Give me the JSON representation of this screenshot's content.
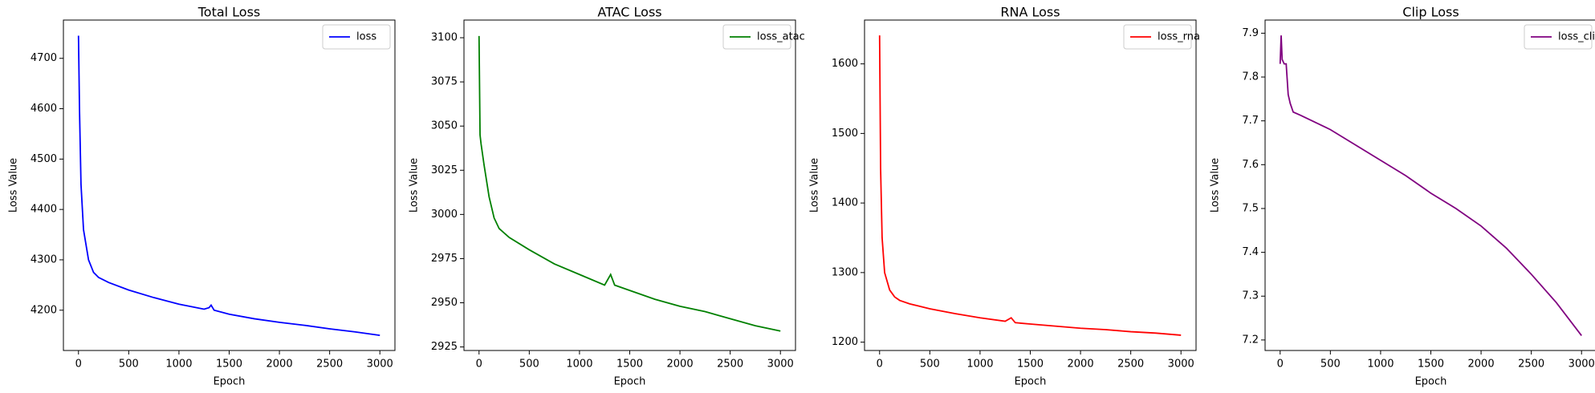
{
  "chart_data": [
    {
      "type": "line",
      "title": "Total Loss",
      "xlabel": "Epoch",
      "ylabel": "Loss Value",
      "x": [
        0,
        10,
        25,
        50,
        100,
        150,
        200,
        300,
        500,
        750,
        1000,
        1250,
        1300,
        1320,
        1350,
        1500,
        1750,
        2000,
        2250,
        2500,
        2750,
        3000
      ],
      "series": [
        {
          "name": "loss",
          "color": "#0000ff",
          "values": [
            4745,
            4600,
            4450,
            4360,
            4300,
            4275,
            4265,
            4255,
            4240,
            4225,
            4212,
            4202,
            4205,
            4210,
            4200,
            4192,
            4183,
            4176,
            4170,
            4163,
            4157,
            4150
          ]
        }
      ],
      "xlim": [
        -150,
        3150
      ],
      "ylim": [
        4120,
        4776
      ],
      "xticks": [
        0,
        500,
        1000,
        1500,
        2000,
        2500,
        3000
      ],
      "yticks": [
        4200,
        4300,
        4400,
        4500,
        4600,
        4700
      ],
      "legend": "upper right"
    },
    {
      "type": "line",
      "title": "ATAC Loss",
      "xlabel": "Epoch",
      "ylabel": "Loss Value",
      "x": [
        0,
        10,
        20,
        50,
        100,
        150,
        200,
        300,
        500,
        750,
        1000,
        1250,
        1310,
        1350,
        1500,
        1750,
        2000,
        2250,
        2500,
        2750,
        3000
      ],
      "series": [
        {
          "name": "loss_atac",
          "color": "#008000",
          "values": [
            3101,
            3045,
            3040,
            3028,
            3010,
            2998,
            2992,
            2987,
            2980,
            2972,
            2966,
            2960,
            2966,
            2960,
            2957,
            2952,
            2948,
            2945,
            2941,
            2937,
            2934
          ]
        }
      ],
      "xlim": [
        -150,
        3150
      ],
      "ylim": [
        2923,
        3110
      ],
      "xticks": [
        0,
        500,
        1000,
        1500,
        2000,
        2500,
        3000
      ],
      "yticks": [
        2925,
        2950,
        2975,
        3000,
        3025,
        3050,
        3075,
        3100
      ],
      "legend": "upper right"
    },
    {
      "type": "line",
      "title": "RNA Loss",
      "xlabel": "Epoch",
      "ylabel": "Loss Value",
      "x": [
        0,
        10,
        25,
        50,
        100,
        150,
        200,
        300,
        500,
        750,
        1000,
        1250,
        1310,
        1350,
        1500,
        1750,
        2000,
        2250,
        2500,
        2750,
        3000
      ],
      "series": [
        {
          "name": "loss_rna",
          "color": "#ff0000",
          "values": [
            1641,
            1450,
            1350,
            1300,
            1275,
            1265,
            1260,
            1255,
            1248,
            1241,
            1235,
            1230,
            1235,
            1228,
            1226,
            1223,
            1220,
            1218,
            1215,
            1213,
            1210
          ]
        }
      ],
      "xlim": [
        -150,
        3150
      ],
      "ylim": [
        1188,
        1663
      ],
      "xticks": [
        0,
        500,
        1000,
        1500,
        2000,
        2500,
        3000
      ],
      "yticks": [
        1200,
        1300,
        1400,
        1500,
        1600
      ],
      "legend": "upper right"
    },
    {
      "type": "line",
      "title": "Clip Loss",
      "xlabel": "Epoch",
      "ylabel": "Loss Value",
      "x": [
        0,
        10,
        20,
        40,
        60,
        80,
        100,
        130,
        200,
        500,
        750,
        1000,
        1250,
        1500,
        1750,
        2000,
        2250,
        2500,
        2750,
        3000
      ],
      "series": [
        {
          "name": "loss_clip",
          "color": "#800080",
          "values": [
            7.83,
            7.895,
            7.84,
            7.83,
            7.83,
            7.76,
            7.74,
            7.72,
            7.713,
            7.68,
            7.645,
            7.61,
            7.575,
            7.535,
            7.5,
            7.46,
            7.41,
            7.35,
            7.285,
            7.21
          ]
        }
      ],
      "xlim": [
        -150,
        3150
      ],
      "ylim": [
        7.176,
        7.93
      ],
      "xticks": [
        0,
        500,
        1000,
        1500,
        2000,
        2500,
        3000
      ],
      "yticks": [
        7.2,
        7.3,
        7.4,
        7.5,
        7.6,
        7.7,
        7.8,
        7.9
      ],
      "legend": "upper right"
    }
  ]
}
